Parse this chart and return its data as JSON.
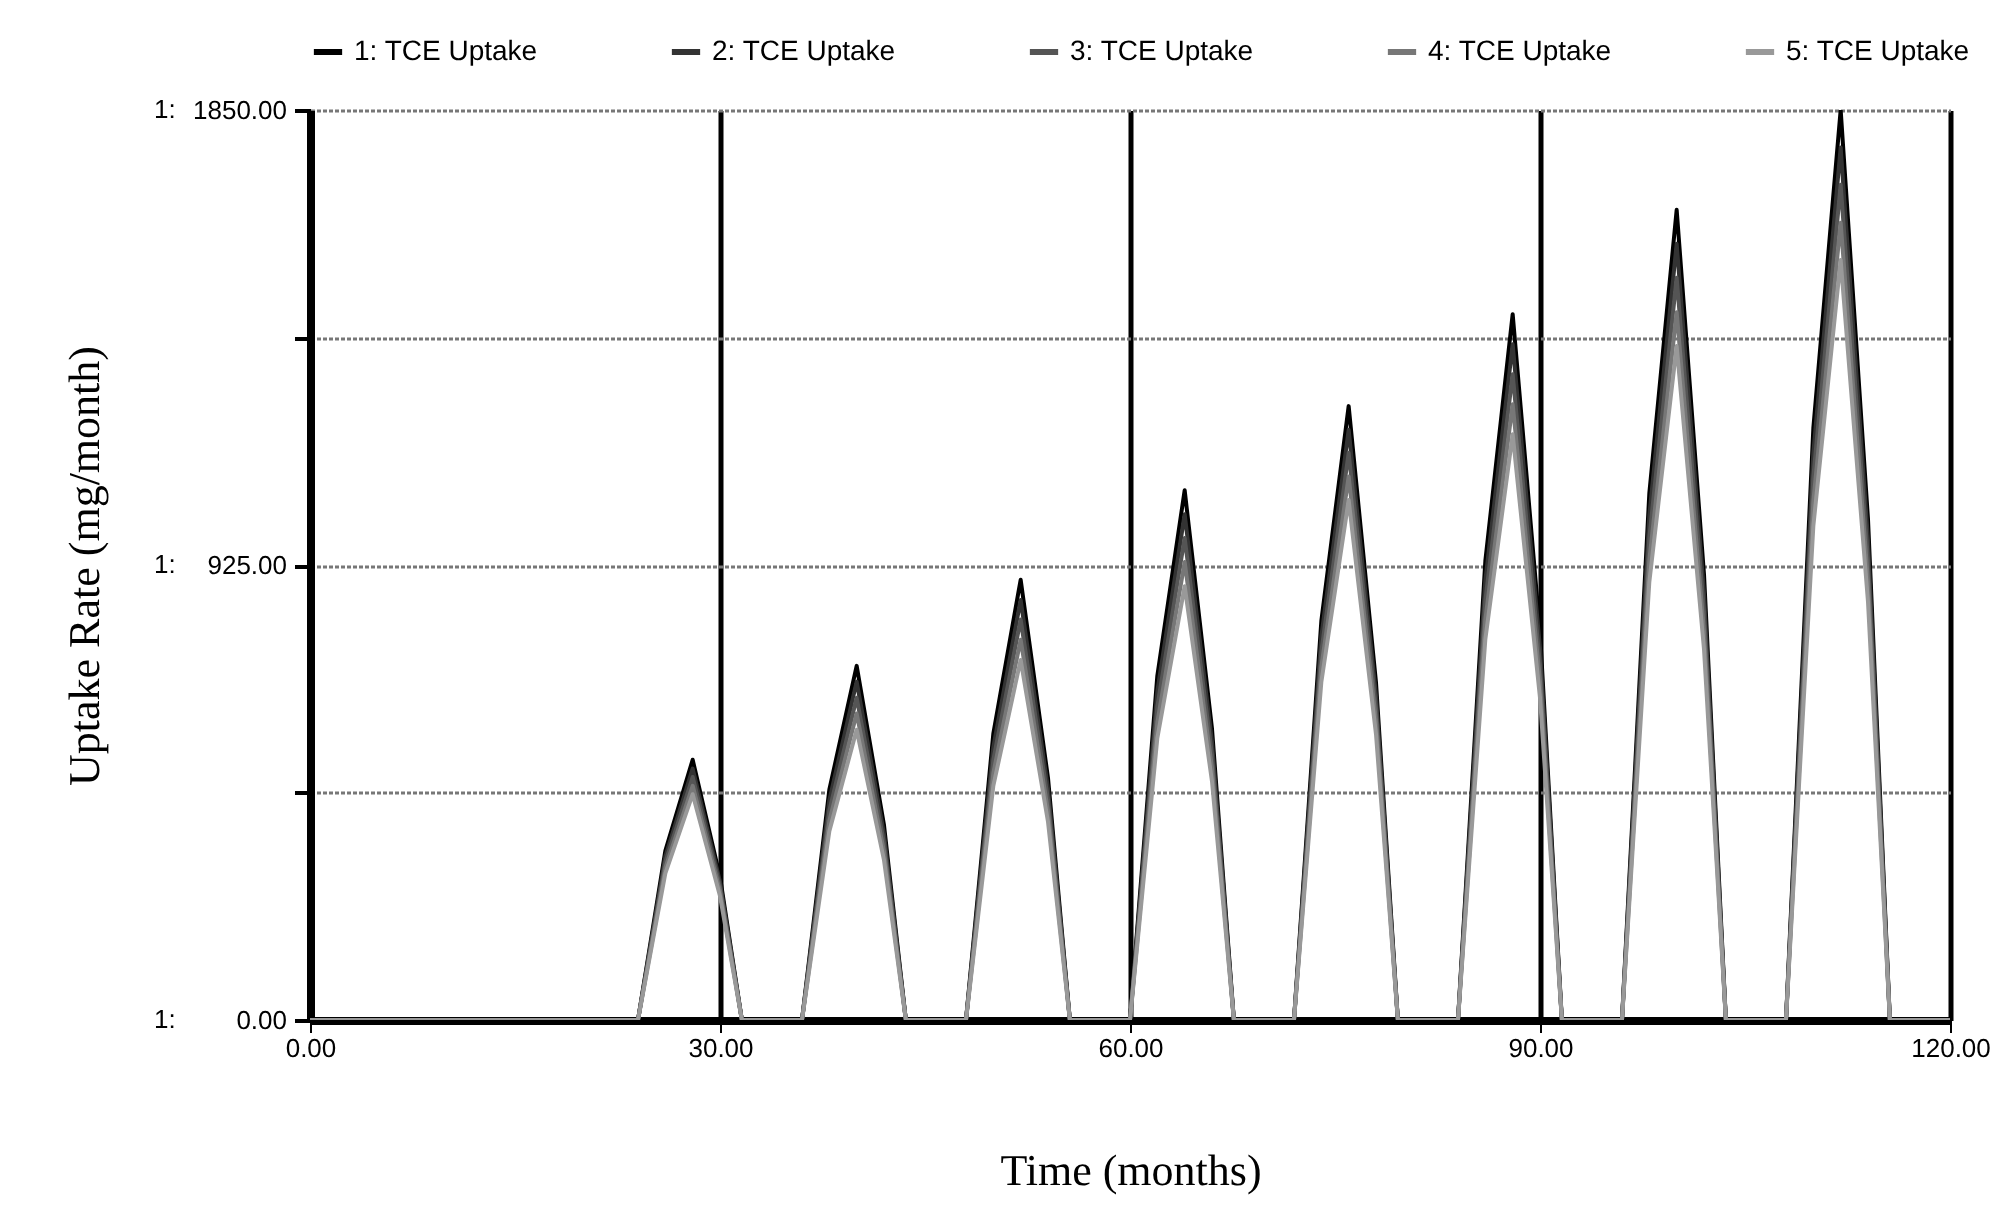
{
  "chart_data": {
    "type": "line",
    "xlabel": "Time (months)",
    "ylabel": "Uptake Rate (mg/month)",
    "x": [
      0,
      24,
      26,
      28,
      30,
      31.6,
      36,
      38,
      40,
      42,
      43.6,
      48,
      50,
      52,
      54,
      55.6,
      60,
      62,
      64,
      66,
      67.6,
      72,
      74,
      76,
      78,
      79.6,
      84,
      86,
      88,
      90,
      91.6,
      96,
      98,
      100,
      102,
      103.6,
      108,
      110,
      112,
      114,
      115.6,
      120
    ],
    "series": [
      {
        "name": "1: TCE Uptake",
        "color": "#000000",
        "values": [
          0,
          0,
          344,
          529,
          291,
          0,
          0,
          468,
          720,
          396,
          0,
          0,
          582,
          895,
          492,
          0,
          0,
          700,
          1077,
          592,
          0,
          0,
          811,
          1248,
          686,
          0,
          0,
          933,
          1435,
          789,
          0,
          0,
          1071,
          1647,
          906,
          0,
          0,
          1203,
          1850,
          1018,
          0,
          0
        ]
      },
      {
        "name": "2: TCE Uptake",
        "color": "#333333",
        "values": [
          0,
          0,
          332,
          511,
          281,
          0,
          0,
          447,
          688,
          378,
          0,
          0,
          555,
          854,
          470,
          0,
          0,
          668,
          1028,
          565,
          0,
          0,
          780,
          1200,
          660,
          0,
          0,
          893,
          1374,
          756,
          0,
          0,
          1026,
          1578,
          868,
          0,
          0,
          1153,
          1774,
          976,
          0,
          0
        ]
      },
      {
        "name": "3: TCE Uptake",
        "color": "#555555",
        "values": [
          0,
          0,
          321,
          494,
          272,
          0,
          0,
          426,
          655,
          360,
          0,
          0,
          529,
          814,
          448,
          0,
          0,
          637,
          980,
          539,
          0,
          0,
          749,
          1153,
          634,
          0,
          0,
          853,
          1313,
          722,
          0,
          0,
          981,
          1509,
          830,
          0,
          0,
          1104,
          1698,
          934,
          0,
          0
        ]
      },
      {
        "name": "4: TCE Uptake",
        "color": "#777777",
        "values": [
          0,
          0,
          309,
          476,
          262,
          0,
          0,
          405,
          623,
          343,
          0,
          0,
          502,
          773,
          425,
          0,
          0,
          605,
          931,
          512,
          0,
          0,
          718,
          1105,
          608,
          0,
          0,
          814,
          1252,
          689,
          0,
          0,
          935,
          1439,
          791,
          0,
          0,
          1054,
          1621,
          892,
          0,
          0
        ]
      },
      {
        "name": "5: TCE Uptake",
        "color": "#999999",
        "values": [
          0,
          0,
          298,
          459,
          252,
          0,
          0,
          384,
          590,
          325,
          0,
          0,
          476,
          732,
          403,
          0,
          0,
          573,
          882,
          485,
          0,
          0,
          687,
          1057,
          581,
          0,
          0,
          774,
          1191,
          655,
          0,
          0,
          891,
          1370,
          754,
          0,
          0,
          1004,
          1545,
          850,
          0,
          0
        ]
      }
    ],
    "xlim": [
      0,
      120
    ],
    "xticks": [
      {
        "value": 0,
        "label": "0.00"
      },
      {
        "value": 30,
        "label": "30.00"
      },
      {
        "value": 60,
        "label": "60.00"
      },
      {
        "value": 90,
        "label": "90.00"
      },
      {
        "value": 120,
        "label": "120.00"
      }
    ],
    "ylim": [
      0,
      1850
    ],
    "yticks": [
      {
        "value": 0,
        "label": "0.00"
      },
      {
        "value": 462.5,
        "label": null
      },
      {
        "value": 925,
        "label": "925.00"
      },
      {
        "value": 1387.5,
        "label": null
      },
      {
        "value": 1850,
        "label": "1850.00"
      }
    ],
    "annotations": [
      "1:",
      "1:",
      "1:"
    ],
    "grid": true,
    "legend": "top",
    "line_style": "solid"
  }
}
